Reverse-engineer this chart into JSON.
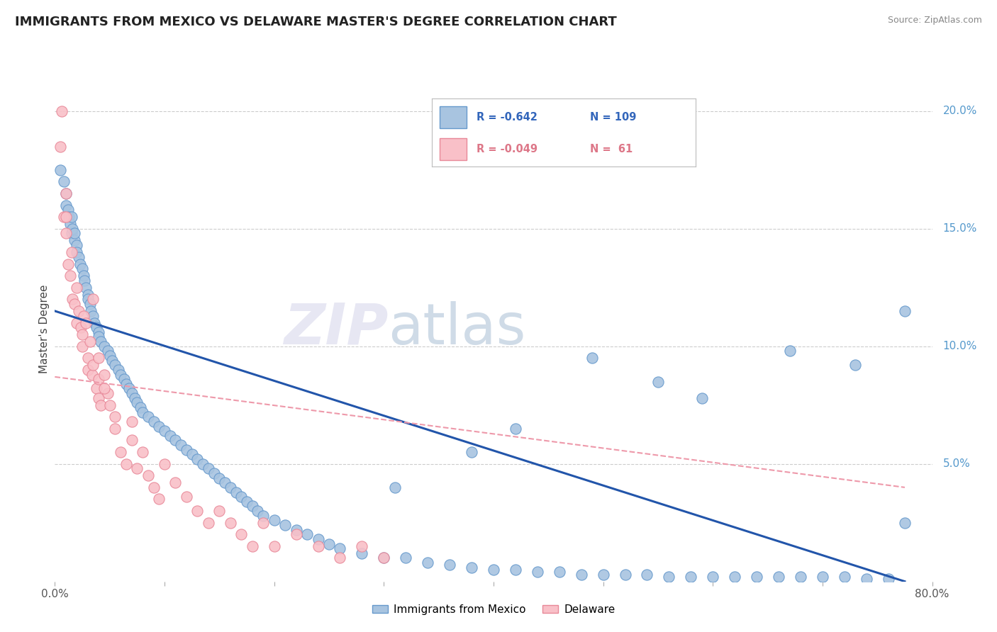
{
  "title": "IMMIGRANTS FROM MEXICO VS DELAWARE MASTER'S DEGREE CORRELATION CHART",
  "source": "Source: ZipAtlas.com",
  "ylabel": "Master's Degree",
  "right_yticks": [
    "20.0%",
    "15.0%",
    "10.0%",
    "5.0%"
  ],
  "right_ytick_vals": [
    0.2,
    0.15,
    0.1,
    0.05
  ],
  "legend_blue_label": "Immigrants from Mexico",
  "legend_pink_label": "Delaware",
  "blue_color": "#A8C4E0",
  "blue_edge_color": "#6699CC",
  "pink_color": "#F9C0C8",
  "pink_edge_color": "#E88898",
  "blue_line_color": "#2255AA",
  "pink_line_color": "#EE99AA",
  "background_color": "#FFFFFF",
  "grid_color": "#CCCCCC",
  "xlim": [
    0.0,
    0.8
  ],
  "ylim": [
    0.0,
    0.215
  ],
  "blue_line_x0": 0.0,
  "blue_line_y0": 0.115,
  "blue_line_x1": 0.775,
  "blue_line_y1": 0.0,
  "pink_line_x0": 0.0,
  "pink_line_y0": 0.087,
  "pink_line_x1": 0.775,
  "pink_line_y1": 0.04,
  "title_fontsize": 13,
  "blue_scatter_x": [
    0.005,
    0.008,
    0.01,
    0.01,
    0.012,
    0.013,
    0.014,
    0.015,
    0.015,
    0.016,
    0.018,
    0.018,
    0.02,
    0.02,
    0.022,
    0.023,
    0.025,
    0.026,
    0.027,
    0.028,
    0.03,
    0.03,
    0.032,
    0.033,
    0.035,
    0.036,
    0.038,
    0.04,
    0.04,
    0.042,
    0.045,
    0.048,
    0.05,
    0.052,
    0.055,
    0.058,
    0.06,
    0.063,
    0.065,
    0.068,
    0.07,
    0.073,
    0.075,
    0.078,
    0.08,
    0.085,
    0.09,
    0.095,
    0.1,
    0.105,
    0.11,
    0.115,
    0.12,
    0.125,
    0.13,
    0.135,
    0.14,
    0.145,
    0.15,
    0.155,
    0.16,
    0.165,
    0.17,
    0.175,
    0.18,
    0.185,
    0.19,
    0.2,
    0.21,
    0.22,
    0.23,
    0.24,
    0.25,
    0.26,
    0.28,
    0.3,
    0.32,
    0.34,
    0.36,
    0.38,
    0.4,
    0.42,
    0.44,
    0.46,
    0.48,
    0.5,
    0.52,
    0.54,
    0.56,
    0.58,
    0.6,
    0.62,
    0.64,
    0.66,
    0.68,
    0.7,
    0.72,
    0.74,
    0.76,
    0.49,
    0.55,
    0.59,
    0.42,
    0.38,
    0.31,
    0.67,
    0.73,
    0.775,
    0.775
  ],
  "blue_scatter_y": [
    0.175,
    0.17,
    0.165,
    0.16,
    0.158,
    0.155,
    0.152,
    0.155,
    0.148,
    0.15,
    0.145,
    0.148,
    0.143,
    0.14,
    0.138,
    0.135,
    0.133,
    0.13,
    0.128,
    0.125,
    0.122,
    0.12,
    0.118,
    0.115,
    0.113,
    0.11,
    0.108,
    0.106,
    0.104,
    0.102,
    0.1,
    0.098,
    0.096,
    0.094,
    0.092,
    0.09,
    0.088,
    0.086,
    0.084,
    0.082,
    0.08,
    0.078,
    0.076,
    0.074,
    0.072,
    0.07,
    0.068,
    0.066,
    0.064,
    0.062,
    0.06,
    0.058,
    0.056,
    0.054,
    0.052,
    0.05,
    0.048,
    0.046,
    0.044,
    0.042,
    0.04,
    0.038,
    0.036,
    0.034,
    0.032,
    0.03,
    0.028,
    0.026,
    0.024,
    0.022,
    0.02,
    0.018,
    0.016,
    0.014,
    0.012,
    0.01,
    0.01,
    0.008,
    0.007,
    0.006,
    0.005,
    0.005,
    0.004,
    0.004,
    0.003,
    0.003,
    0.003,
    0.003,
    0.002,
    0.002,
    0.002,
    0.002,
    0.002,
    0.002,
    0.002,
    0.002,
    0.002,
    0.001,
    0.001,
    0.095,
    0.085,
    0.078,
    0.065,
    0.055,
    0.04,
    0.098,
    0.092,
    0.115,
    0.025
  ],
  "pink_scatter_x": [
    0.005,
    0.006,
    0.008,
    0.01,
    0.01,
    0.012,
    0.014,
    0.015,
    0.016,
    0.018,
    0.02,
    0.02,
    0.022,
    0.024,
    0.025,
    0.026,
    0.028,
    0.03,
    0.03,
    0.032,
    0.034,
    0.035,
    0.038,
    0.04,
    0.04,
    0.042,
    0.045,
    0.048,
    0.05,
    0.055,
    0.06,
    0.065,
    0.07,
    0.075,
    0.08,
    0.085,
    0.09,
    0.095,
    0.1,
    0.11,
    0.12,
    0.13,
    0.14,
    0.15,
    0.16,
    0.17,
    0.18,
    0.19,
    0.2,
    0.22,
    0.24,
    0.26,
    0.28,
    0.3,
    0.01,
    0.025,
    0.04,
    0.035,
    0.055,
    0.07,
    0.045
  ],
  "pink_scatter_y": [
    0.185,
    0.2,
    0.155,
    0.148,
    0.165,
    0.135,
    0.13,
    0.14,
    0.12,
    0.118,
    0.125,
    0.11,
    0.115,
    0.108,
    0.1,
    0.113,
    0.11,
    0.095,
    0.09,
    0.102,
    0.088,
    0.092,
    0.082,
    0.086,
    0.078,
    0.075,
    0.088,
    0.08,
    0.075,
    0.065,
    0.055,
    0.05,
    0.06,
    0.048,
    0.055,
    0.045,
    0.04,
    0.035,
    0.05,
    0.042,
    0.036,
    0.03,
    0.025,
    0.03,
    0.025,
    0.02,
    0.015,
    0.025,
    0.015,
    0.02,
    0.015,
    0.01,
    0.015,
    0.01,
    0.155,
    0.105,
    0.095,
    0.12,
    0.07,
    0.068,
    0.082
  ]
}
